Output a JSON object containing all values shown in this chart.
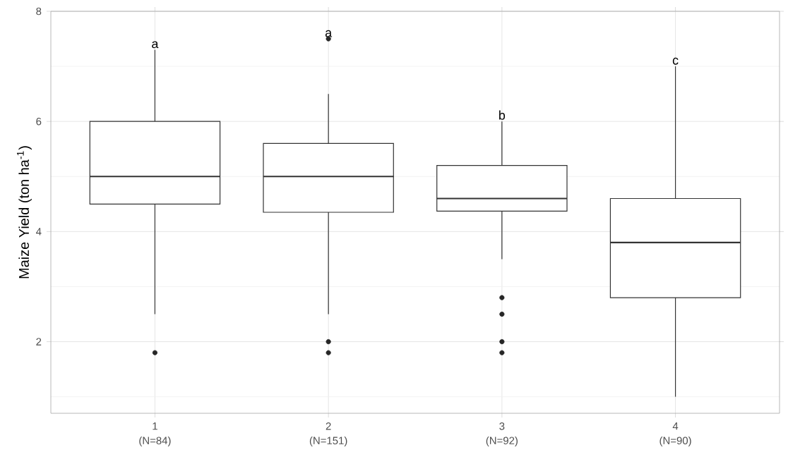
{
  "chart_data": {
    "type": "box",
    "ylabel": "Maize Yield (ton ha$^{-1}$)",
    "categories": [
      "1",
      "2",
      "3",
      "4"
    ],
    "boxes": [
      {
        "low": 2.5,
        "q1": 4.5,
        "median": 5,
        "q3": 6,
        "high": 7.3,
        "outliers": [
          1.8
        ]
      },
      {
        "low": 2.5,
        "q1": 4.35,
        "median": 5,
        "q3": 5.6,
        "high": 6.5,
        "outliers": [
          7.5,
          2.0,
          1.8
        ]
      },
      {
        "low": 3.5,
        "q1": 4.37,
        "median": 4.6,
        "q3": 5.2,
        "high": 6,
        "outliers": [
          2.8,
          2.5,
          2.0,
          1.8
        ]
      },
      {
        "low": 1.0,
        "q1": 2.8,
        "median": 3.8,
        "q3": 4.6,
        "high": 7.0
      }
    ],
    "ylim": [
      0.7,
      8
    ],
    "yticks": [
      2,
      4,
      6,
      8
    ],
    "grid": true,
    "annotations": [
      "a",
      "a",
      "b",
      "c",
      "(N=84)",
      "(N=151)",
      "(N=92)",
      "(N=90)"
    ]
  }
}
